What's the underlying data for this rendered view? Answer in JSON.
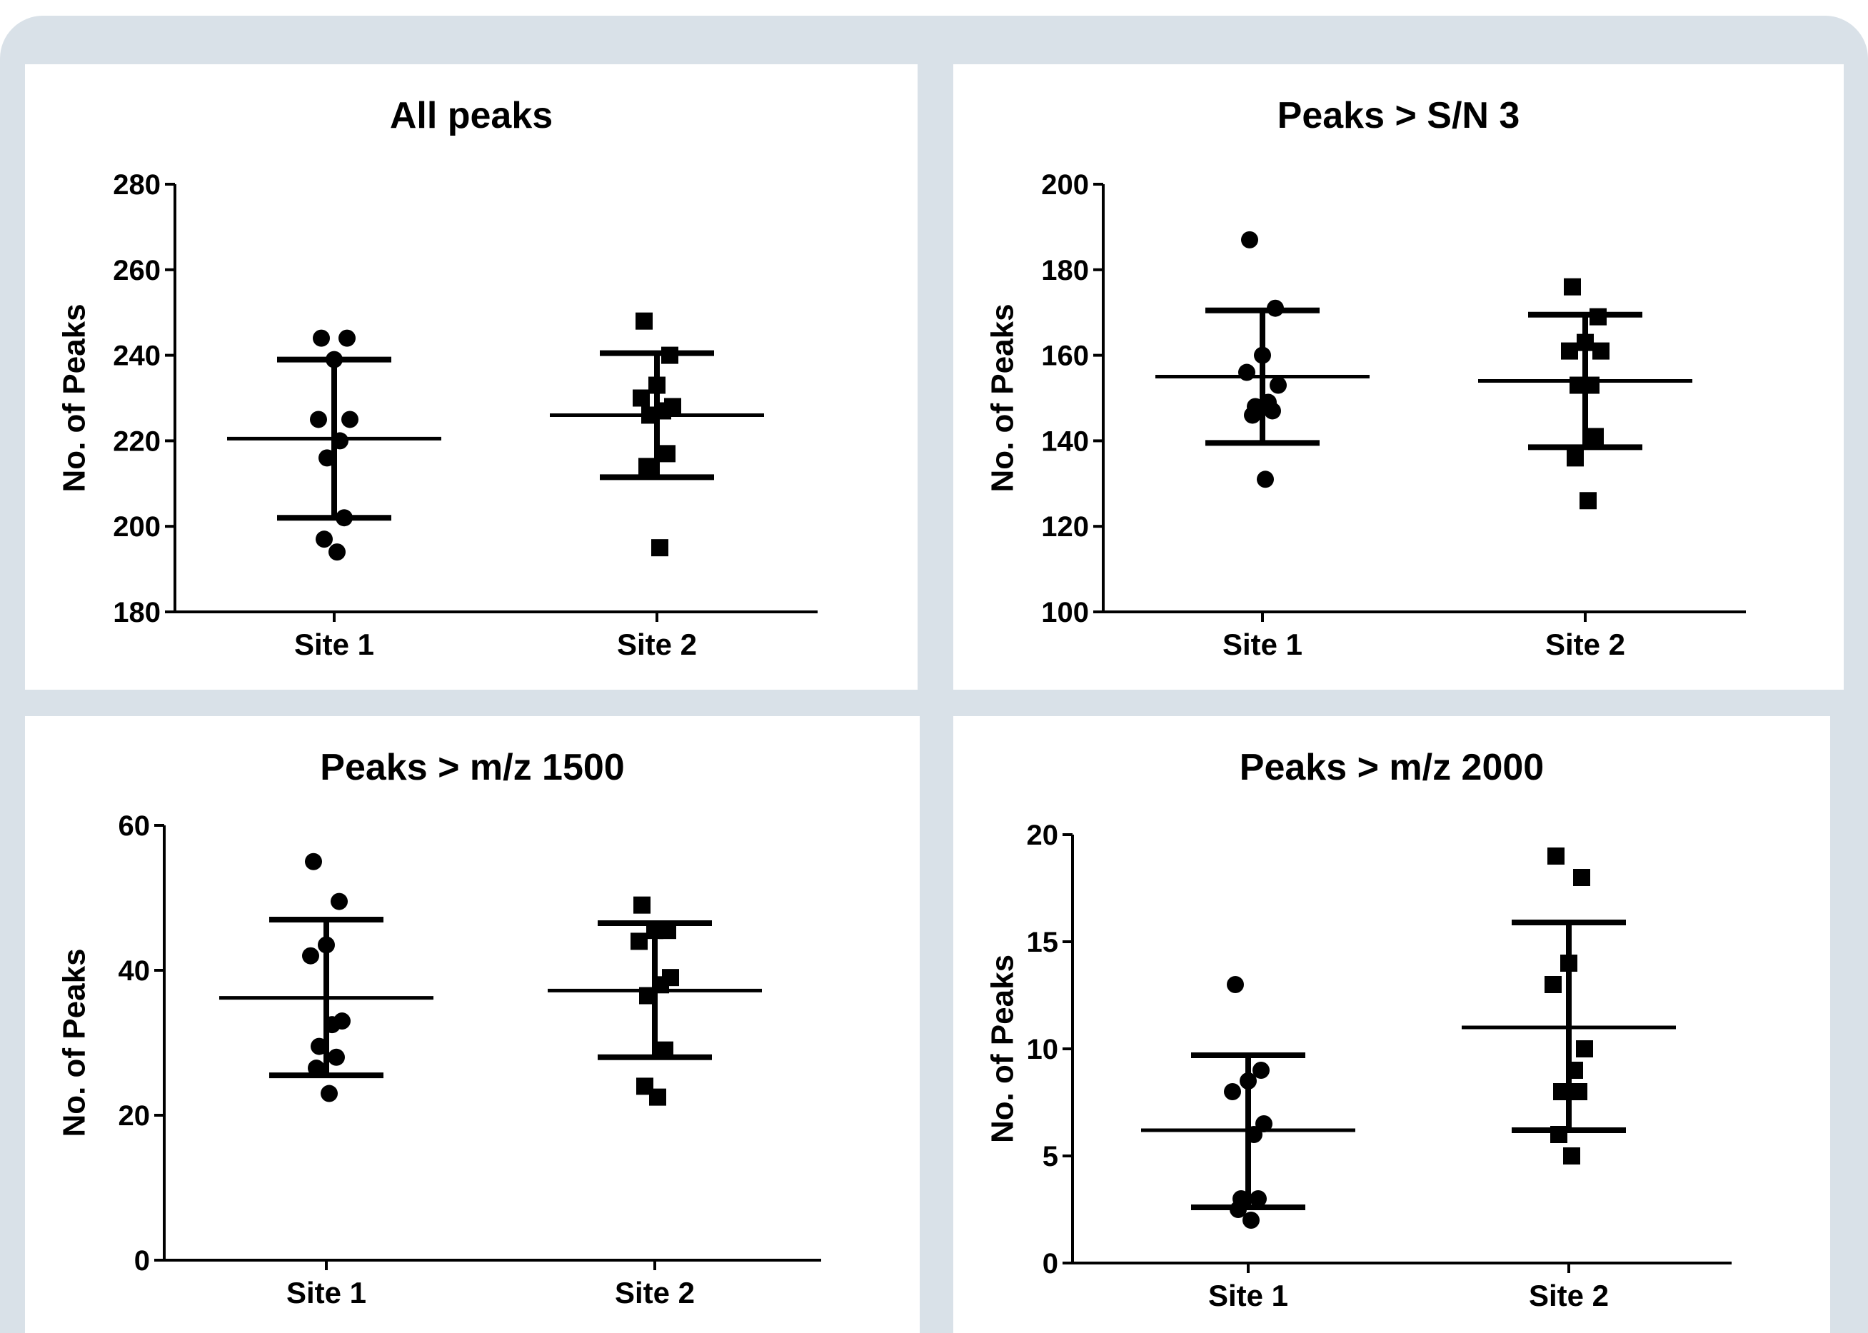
{
  "chart_data": [
    {
      "type": "scatter",
      "title": "All peaks",
      "ylabel": "No. of Peaks",
      "xlabel": "",
      "categories": [
        "Site 1",
        "Site 2"
      ],
      "ylim": [
        180,
        280
      ],
      "yticks": [
        180,
        200,
        220,
        240,
        260,
        280
      ],
      "grid": false,
      "series": [
        {
          "marker": "circle",
          "category": "Site 1",
          "values": [
            244,
            244,
            239,
            225,
            225,
            220,
            216,
            202,
            197,
            194
          ],
          "mean": 220.5,
          "sd_low": 202,
          "sd_high": 239
        },
        {
          "marker": "square",
          "category": "Site 2",
          "values": [
            248,
            240,
            233,
            230,
            228,
            227,
            226,
            217,
            214,
            195
          ],
          "mean": 226,
          "sd_low": 211.5,
          "sd_high": 240.5
        }
      ]
    },
    {
      "type": "scatter",
      "title": "Peaks > S/N 3",
      "ylabel": "No. of Peaks",
      "xlabel": "",
      "categories": [
        "Site 1",
        "Site 2"
      ],
      "ylim": [
        100,
        200
      ],
      "yticks": [
        100,
        120,
        140,
        160,
        180,
        200
      ],
      "grid": false,
      "series": [
        {
          "marker": "circle",
          "category": "Site 1",
          "values": [
            187,
            171,
            160,
            156,
            153,
            149,
            148,
            147,
            146,
            131
          ],
          "mean": 155,
          "sd_low": 139.5,
          "sd_high": 170.5
        },
        {
          "marker": "square",
          "category": "Site 2",
          "values": [
            176,
            169,
            163,
            161,
            161,
            153,
            153,
            141,
            136,
            126
          ],
          "mean": 154,
          "sd_low": 138.5,
          "sd_high": 169.5
        }
      ]
    },
    {
      "type": "scatter",
      "title": "Peaks > m/z 1500",
      "ylabel": "No. of Peaks",
      "xlabel": "",
      "categories": [
        "Site 1",
        "Site 2"
      ],
      "ylim": [
        0,
        60
      ],
      "yticks": [
        0,
        20,
        40,
        60
      ],
      "grid": false,
      "series": [
        {
          "marker": "circle",
          "category": "Site 1",
          "values": [
            55,
            49.5,
            43.5,
            42,
            33,
            32.5,
            29.5,
            28,
            26.5,
            23
          ],
          "mean": 36.2,
          "sd_low": 25.5,
          "sd_high": 47
        },
        {
          "marker": "square",
          "category": "Site 2",
          "values": [
            49,
            45.5,
            45.5,
            44,
            39,
            38,
            36.5,
            29,
            24,
            22.5
          ],
          "mean": 37.2,
          "sd_low": 28,
          "sd_high": 46.5
        }
      ]
    },
    {
      "type": "scatter",
      "title": "Peaks > m/z 2000",
      "ylabel": "No. of Peaks",
      "xlabel": "",
      "categories": [
        "Site 1",
        "Site 2"
      ],
      "ylim": [
        0,
        20
      ],
      "yticks": [
        0,
        5,
        10,
        15,
        20
      ],
      "grid": false,
      "series": [
        {
          "marker": "circle",
          "category": "Site 1",
          "values": [
            13,
            9,
            8.5,
            8,
            6.5,
            6,
            3,
            3,
            2.5,
            2
          ],
          "mean": 6.2,
          "sd_low": 2.6,
          "sd_high": 9.7
        },
        {
          "marker": "square",
          "category": "Site 2",
          "values": [
            19,
            18,
            14,
            13,
            10,
            9,
            8,
            8,
            6,
            5
          ],
          "mean": 11,
          "sd_low": 6.2,
          "sd_high": 15.9
        }
      ]
    }
  ]
}
